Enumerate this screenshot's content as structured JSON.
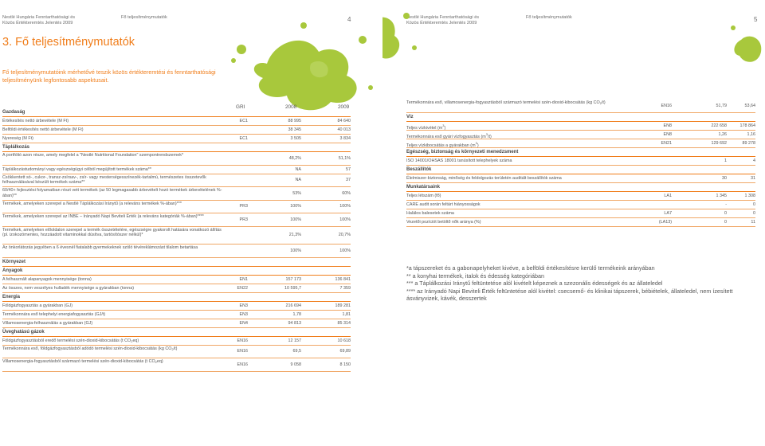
{
  "left_page": {
    "header_line1": "Nestlé Hungária Fenntarthatósági és",
    "header_line2": "Közös Értékteremtés Jelentés 2009",
    "header_mid": "Fő teljesítménymutatók",
    "page_number": "4",
    "title": "3. Fő teljesítménymutatók",
    "intro": "Fő teljesítménymutatóink mérhetővé teszik közös értékteremtési és fenntarthatósági teljesítményünk legfontosabb aspektusait.",
    "col_gri": "GRI",
    "col_2008": "2008",
    "col_2009": "2009",
    "rows": [
      {
        "type": "sec",
        "label": "Gazdaság"
      },
      {
        "label": "Értékesítés nettó árbevétele (M Ft)",
        "gri": "EC1",
        "v2008": "88 995",
        "v2009": "84 640"
      },
      {
        "label": "Belföldi értékesítés nettó árbevétele (M Ft)",
        "gri": "",
        "v2008": "38 345",
        "v2009": "40 013"
      },
      {
        "label": "Nyereség (M Ft)",
        "gri": "EC1",
        "v2008": "3 505",
        "v2009": "3 834"
      },
      {
        "type": "sec",
        "label": "Táplálkozás"
      },
      {
        "label": "A portfólió azon része, amely megfelel a \"Nestlé Nutritional Foundation\" szempontrendszernek*",
        "gri": "",
        "v2008": "48,2%",
        "v2009": "51,1%",
        "h": 2
      },
      {
        "label": "Táplálkozástudományi vagy egészségügyi célból megújított termékek száma**",
        "gri": "",
        "v2008": "NA",
        "v2009": "57"
      },
      {
        "label": "Csökkentett só-, cukor-, transz-zsírsav-, zsír- vagy mesterségesszínezék-tartalmú, természetes összetevők felhasználásával készült termékek száma**",
        "gri": "",
        "v2008": "NA",
        "v2009": "37",
        "h": 2
      },
      {
        "label": "60/40+ fejlesztési folyamatban részt vett termékek (az 50 legmagasabb árbevételt hozó termékek árbevételének %-ában)**",
        "gri": "",
        "v2008": "53%",
        "v2009": "60%",
        "h": 2
      },
      {
        "label": "Termékek, amelyeken szerepel a Nestlé Táplálkozási Iránytű (a releváns termékek %-ában)***",
        "gri": "PR3",
        "v2008": "100%",
        "v2009": "100%",
        "h": 2
      },
      {
        "label": "Termékek, amelyeken szerepel az INBE – Irányadó Napi Beviteli Érték (a releváns kategóriák %-ában)****",
        "gri": "PR3",
        "v2008": "100%",
        "v2009": "100%",
        "h": 2
      },
      {
        "label": "Termékek, amelyeken előoldalon szerepel a termék összetételére, egészségre gyakorolt hatására vonatkozó állítás (pl. izokozómentes, hozzáadott vitaminokkal dúsítva, tartósítószer nélkül)*",
        "gri": "",
        "v2008": "21,3%",
        "v2009": "20,7%",
        "h": 3
      },
      {
        "label": "Az önkorlátozás jegyében a 6 évesnél fiatalabb gyermekeknek szóló tévéreklámozást tilalom betartása",
        "gri": "",
        "v2008": "100%",
        "v2009": "100%",
        "h": 2
      },
      {
        "type": "sec",
        "label": "Környezet"
      },
      {
        "type": "sec",
        "label": "Anyagok"
      },
      {
        "label": "A felhasznált alapanyagok mennyisége (tonna)",
        "gri": "EN1",
        "v2008": "157 173",
        "v2009": "136 841"
      },
      {
        "label": "Az összes, nem veszélyes hulladék mennyisége a gyárakban (tonna)",
        "gri": "EN22",
        "v2008": "10 595,7",
        "v2009": "7 359"
      },
      {
        "type": "sec",
        "label": "Energia"
      },
      {
        "label": "Földgázfogyasztás a gyárakban (GJ)",
        "gri": "EN3",
        "v2008": "216 694",
        "v2009": "189 281"
      },
      {
        "label": "Termékonnára eső telephelyi energiafogyasztás (GJ/t)",
        "gri": "EN3",
        "v2008": "1,78",
        "v2009": "1,81"
      },
      {
        "label": "Villamosenergia-felhasználás a gyárakban (GJ)",
        "gri": "EN4",
        "v2008": "94 813",
        "v2009": "85 314"
      },
      {
        "type": "sec",
        "label": "Üveghatású gázok"
      },
      {
        "label": "Földgázfogyasztásból eredő termelési szén-dioxid-kibocsátás (t CO2eq)",
        "gri": "EN16",
        "v2008": "12 157",
        "v2009": "10 618"
      },
      {
        "label": "Termékonnára eső, földgázfogyasztásból adódó termelési szén-dioxid-kibocsátás (kg CO2/t)",
        "gri": "EN16",
        "v2008": "69,5",
        "v2009": "69,89",
        "h": 2
      },
      {
        "label": "Villamosenergia-fogyasztásból származó termelési szén-dioxid-kibocsátás (t CO2eq)",
        "gri": "EN16",
        "v2008": "9 058",
        "v2009": "8 150",
        "h": 2
      }
    ]
  },
  "right_page": {
    "header_line1": "Nestlé Hungária Fenntarthatósági és",
    "header_line2": "Közös Értékteremtés Jelentés 2009",
    "header_mid": "Fő teljesítménymutatók",
    "page_number": "5",
    "rows": [
      {
        "label": "Termékonnára eső, villamosenergia-fogyasztásból származó termelési szén-dioxid-kibocsátás (kg CO2/t)",
        "gri": "EN16",
        "v2008": "51,79",
        "v2009": "53,64",
        "h": 2
      },
      {
        "type": "sec",
        "label": "Víz"
      },
      {
        "label": "Teljes vízkivétel (m3)",
        "gri": "EN8",
        "v2008": "222 658",
        "v2009": "178 864"
      },
      {
        "label": "Termékonnára eső gyári vízfogyasztás (m3/t)",
        "gri": "EN8",
        "v2008": "1,26",
        "v2009": "1,16"
      },
      {
        "label": "Teljes vízkibocsátás a gyárakban (m3)",
        "gri": "EN21",
        "v2008": "129 692",
        "v2009": "89 278"
      },
      {
        "type": "sec",
        "label": "Egészség, biztonság és környezeti menedzsment"
      },
      {
        "label": "ISO 14001/OHSAS 18001 tanúsított telephelyek száma",
        "gri": "",
        "v2008": "1",
        "v2009": "4"
      },
      {
        "type": "sec",
        "label": "Beszállítók"
      },
      {
        "label": "Élelmiszer-biztonság, minőség és feldolgozás területén auditált beszállítók száma",
        "gri": "",
        "v2008": "30",
        "v2009": "31"
      },
      {
        "type": "sec",
        "label": "Munkatársaink"
      },
      {
        "label": "Teljes létszám (fő)",
        "gri": "LA1",
        "v2008": "1 345",
        "v2009": "1 308"
      },
      {
        "label": "CARE audit során feltárt hiányosságok",
        "gri": "",
        "v2008": "-",
        "v2009": "0"
      },
      {
        "label": "Halálos balesetek száma",
        "gri": "LA7",
        "v2008": "0",
        "v2009": "0"
      },
      {
        "label": "Vezetői pozíciót betöltő nők aránya (%)",
        "gri": "(LA13)",
        "v2008": "0",
        "v2009": "11"
      }
    ],
    "footnotes": [
      "*a tápszereket és a gabonapelyheket kivéve, a belföldi értékesítésre kerülő termékeink arányában",
      "** a konyhai termékek, italok és édesség kategóriában",
      "*** a Táplálkozási Iránytű feltüntetése alól kivételt képeznek a szezonális édességek és az állateledel",
      "**** az Irányadó Napi Beviteli Érték feltüntetése alól kivétel: csecsemő- és klinikai tápszerek, bébiételek, állateledel, nem ízesített ásványvizek, kávék, desszertek"
    ]
  },
  "colors": {
    "accent": "#f07d1a",
    "splash": "#a8c83c",
    "rule": "#f0a766"
  }
}
